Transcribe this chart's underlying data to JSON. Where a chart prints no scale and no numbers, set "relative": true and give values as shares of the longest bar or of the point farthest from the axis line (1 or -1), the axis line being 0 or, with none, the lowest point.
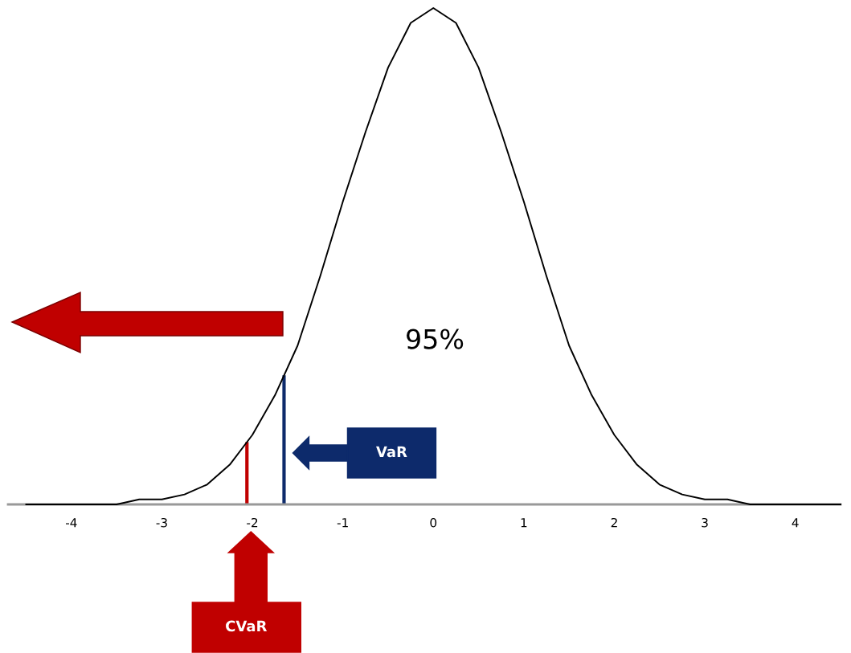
{
  "chart_data": {
    "type": "line",
    "relative": true,
    "x": [
      -4.5,
      -4.25,
      -4,
      -3.75,
      -3.5,
      -3.25,
      -3,
      -2.75,
      -2.5,
      -2.25,
      -2,
      -1.75,
      -1.5,
      -1.25,
      -1,
      -0.75,
      -0.5,
      -0.25,
      0,
      0.25,
      0.5,
      0.75,
      1,
      1.25,
      1.5,
      1.75,
      2,
      2.25,
      2.5,
      2.75,
      3,
      3.25,
      3.5,
      3.75,
      4,
      4.25,
      4.5
    ],
    "series": [
      {
        "color": "#000000",
        "values": [
          0,
          0,
          0,
          0,
          0,
          0.01,
          0.01,
          0.02,
          0.04,
          0.08,
          0.14,
          0.22,
          0.32,
          0.46,
          0.61,
          0.75,
          0.88,
          0.97,
          1,
          0.97,
          0.88,
          0.75,
          0.61,
          0.46,
          0.32,
          0.22,
          0.14,
          0.08,
          0.04,
          0.02,
          0.01,
          0.01,
          0,
          0,
          0,
          0,
          0
        ]
      }
    ],
    "xlim": [
      -4.7,
      4.5
    ],
    "xticks": [
      -4,
      -3,
      -2,
      -1,
      0,
      1,
      2,
      3,
      4
    ],
    "ref_lines": [
      {
        "axis": "x",
        "value": -1.65,
        "color": "#0d2a6b"
      },
      {
        "axis": "x",
        "value": -2.06,
        "color": "#c00000"
      }
    ],
    "annotations": [
      "95%",
      "VaR",
      "CVaR"
    ],
    "grid": false,
    "marker": "none",
    "line_style": "solid"
  }
}
